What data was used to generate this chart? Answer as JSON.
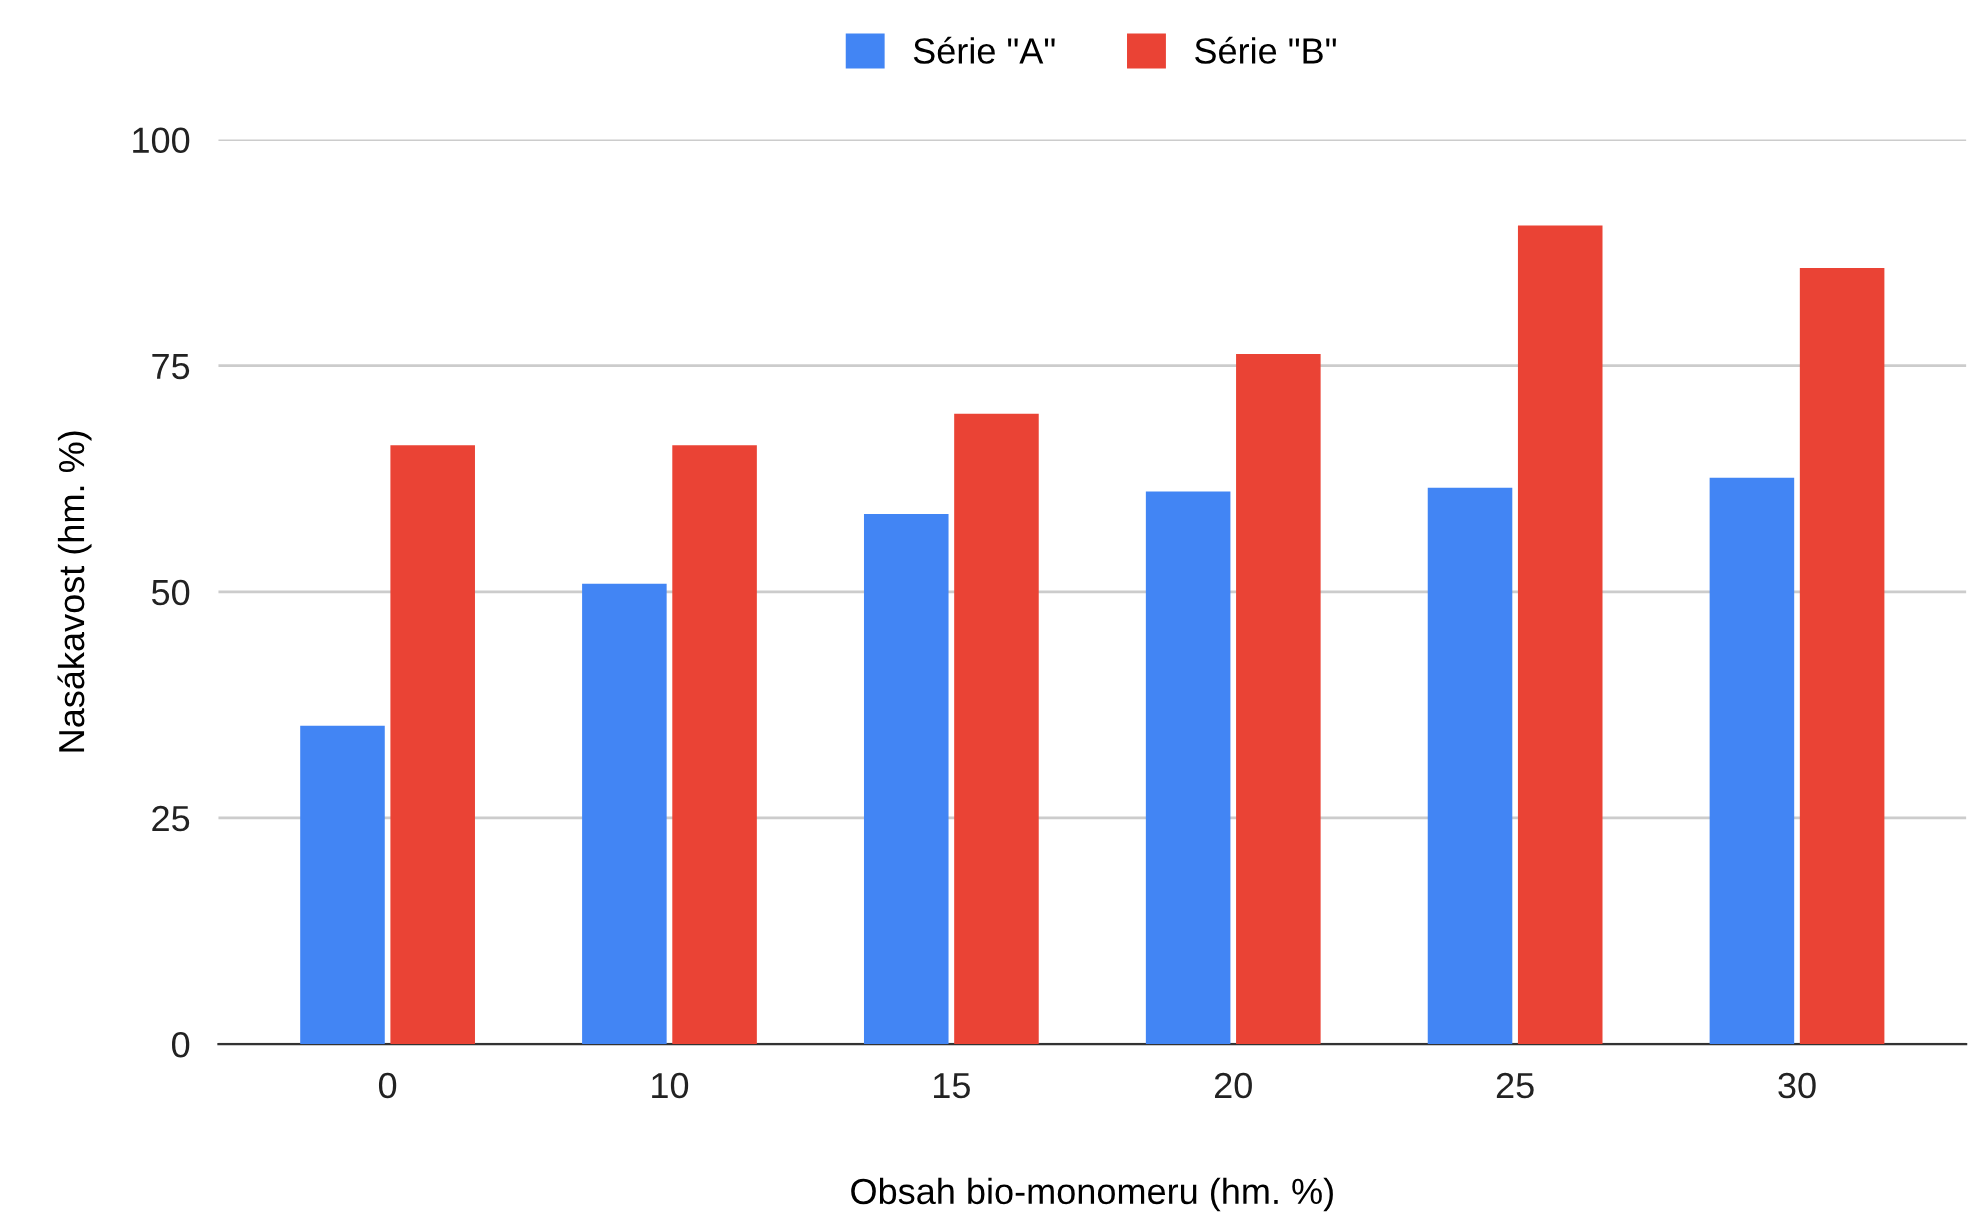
{
  "chart_data": {
    "type": "bar",
    "xlabel": "Obsah bio-monomeru (hm. %)",
    "ylabel": "Nasákavost (hm. %)",
    "categories": [
      "0",
      "10",
      "15",
      "20",
      "25",
      "30"
    ],
    "series": [
      {
        "name": "Série \"A\"",
        "color": "#4285f4",
        "values": [
          35.2,
          50.9,
          58.6,
          61.1,
          61.5,
          62.6
        ]
      },
      {
        "name": "Série \"B\"",
        "color": "#ea4335",
        "values": [
          66.2,
          66.2,
          69.7,
          76.3,
          90.5,
          85.8
        ]
      }
    ],
    "ylim": [
      0,
      100
    ],
    "yticks": [
      0,
      25,
      50,
      75,
      100
    ],
    "grid": "y",
    "legend": "top"
  }
}
